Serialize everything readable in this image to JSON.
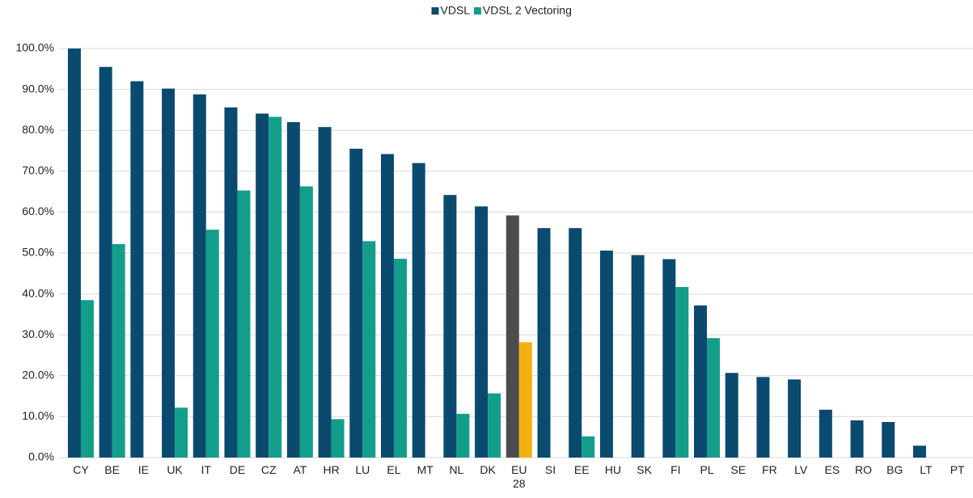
{
  "chart_data": {
    "type": "bar",
    "categories": [
      "CY",
      "BE",
      "IE",
      "UK",
      "IT",
      "DE",
      "CZ",
      "AT",
      "HR",
      "LU",
      "EL",
      "MT",
      "NL",
      "DK",
      "EU 28",
      "SI",
      "EE",
      "HU",
      "SK",
      "FI",
      "PL",
      "SE",
      "FR",
      "LV",
      "ES",
      "RO",
      "BG",
      "LT",
      "PT"
    ],
    "series": [
      {
        "name": "VDSL",
        "color": "#0b4a6f",
        "colors": [
          "#0b4a6f",
          "#0b4a6f",
          "#0b4a6f",
          "#0b4a6f",
          "#0b4a6f",
          "#0b4a6f",
          "#0b4a6f",
          "#0b4a6f",
          "#0b4a6f",
          "#0b4a6f",
          "#0b4a6f",
          "#0b4a6f",
          "#0b4a6f",
          "#0b4a6f",
          "#4d4d50",
          "#0b4a6f",
          "#0b4a6f",
          "#0b4a6f",
          "#0b4a6f",
          "#0b4a6f",
          "#0b4a6f",
          "#0b4a6f",
          "#0b4a6f",
          "#0b4a6f",
          "#0b4a6f",
          "#0b4a6f",
          "#0b4a6f",
          "#0b4a6f",
          "#0b4a6f"
        ],
        "values": [
          100,
          95.5,
          92,
          90.2,
          88.8,
          85.6,
          84.1,
          82,
          80.8,
          75.5,
          74.2,
          72,
          64.2,
          61.4,
          59.2,
          56.1,
          56.1,
          50.6,
          49.5,
          48.5,
          37.2,
          20.7,
          19.7,
          19.1,
          11.7,
          9.1,
          8.7,
          2.9,
          0
        ]
      },
      {
        "name": "VDSL 2 Vectoring",
        "color": "#139e8c",
        "colors": [
          "#139e8c",
          "#139e8c",
          "#139e8c",
          "#139e8c",
          "#139e8c",
          "#139e8c",
          "#139e8c",
          "#139e8c",
          "#139e8c",
          "#139e8c",
          "#139e8c",
          "#139e8c",
          "#139e8c",
          "#139e8c",
          "#f2b10e",
          "#139e8c",
          "#139e8c",
          "#139e8c",
          "#139e8c",
          "#139e8c",
          "#139e8c",
          "#139e8c",
          "#139e8c",
          "#139e8c",
          "#139e8c",
          "#139e8c",
          "#139e8c",
          "#139e8c",
          "#139e8c"
        ],
        "values": [
          38.5,
          52.2,
          0,
          12.2,
          55.7,
          65.3,
          83.3,
          66.3,
          9.4,
          52.9,
          48.6,
          0,
          10.7,
          15.7,
          28.2,
          0,
          5.2,
          0,
          0,
          41.7,
          29.2,
          0,
          0,
          0,
          0,
          0,
          0,
          0,
          0
        ]
      }
    ],
    "ylim": [
      0,
      100
    ],
    "yticks": [
      {
        "value": 0,
        "label": "0.0%"
      },
      {
        "value": 10,
        "label": "10.0%"
      },
      {
        "value": 20,
        "label": "20.0%"
      },
      {
        "value": 30,
        "label": "30.0%"
      },
      {
        "value": 40,
        "label": "40.0%"
      },
      {
        "value": 50,
        "label": "50.0%"
      },
      {
        "value": 60,
        "label": "60.0%"
      },
      {
        "value": 70,
        "label": "70.0%"
      },
      {
        "value": 80,
        "label": "80.0%"
      },
      {
        "value": 90,
        "label": "90.0%"
      },
      {
        "value": 100,
        "label": "100.0%"
      }
    ],
    "grid": true,
    "legend": "top"
  }
}
